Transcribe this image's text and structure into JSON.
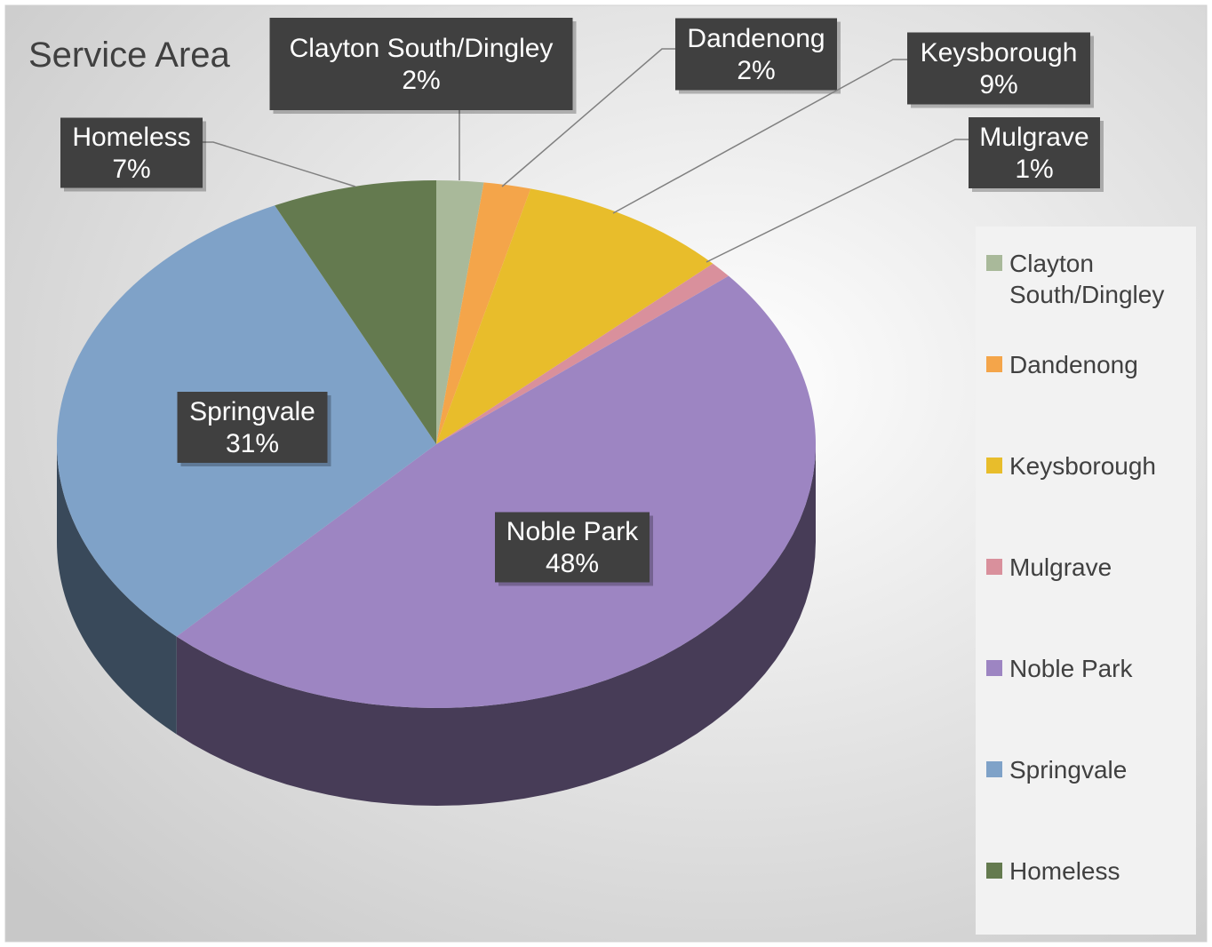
{
  "chart_data": {
    "type": "pie",
    "title": "Service Area",
    "categories": [
      "Clayton South/Dingley",
      "Dandenong",
      "Keysborough",
      "Mulgrave",
      "Noble Park",
      "Springvale",
      "Homeless"
    ],
    "values": [
      2,
      2,
      9,
      1,
      48,
      31,
      7
    ],
    "value_labels": [
      "2%",
      "2%",
      "9%",
      "1%",
      "48%",
      "31%",
      "7%"
    ],
    "colors": [
      "#a9b99a",
      "#f4a54a",
      "#e8bd2b",
      "#d9909c",
      "#9d85c2",
      "#7fa2c8",
      "#647a4f"
    ],
    "legend": "right"
  }
}
